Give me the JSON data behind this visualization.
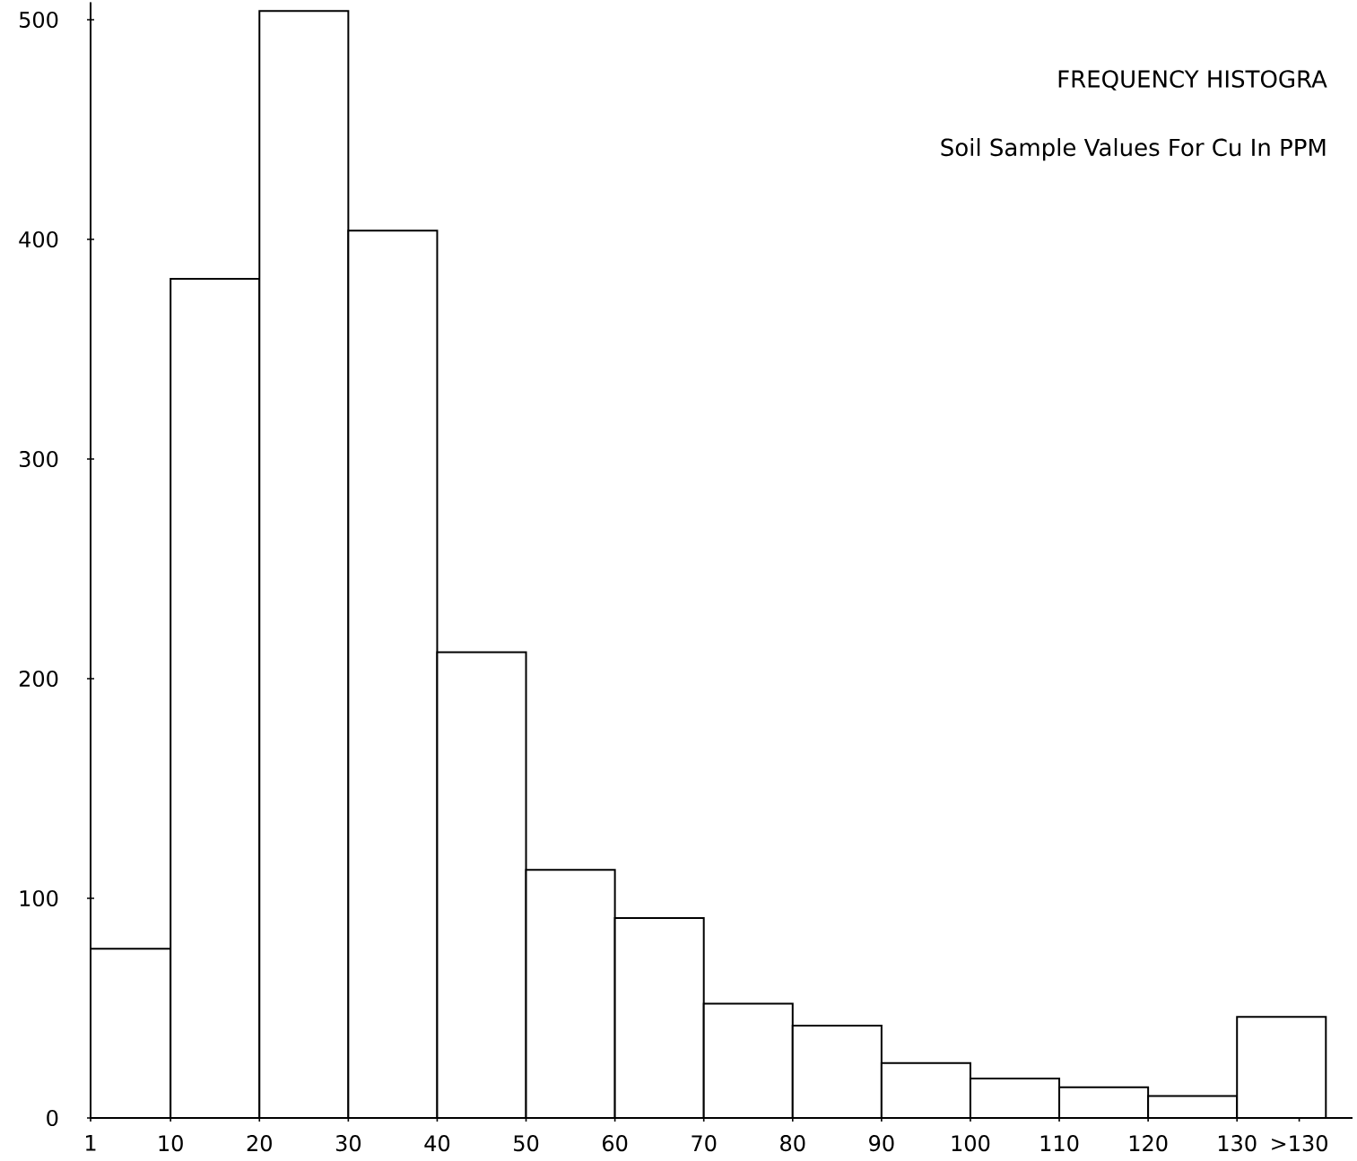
{
  "chart_data": {
    "type": "histogram",
    "title": "FREQUENCY HISTOGRA",
    "subtitle": "Soil Sample Values For Cu In PPM",
    "bins": [
      1,
      10,
      20,
      30,
      40,
      50,
      60,
      70,
      80,
      90,
      100,
      110,
      120,
      130,
      140
    ],
    "values": [
      77,
      382,
      504,
      404,
      212,
      113,
      91,
      52,
      42,
      25,
      18,
      14,
      10,
      46
    ],
    "color": "#ffffff",
    "xlim": [
      1,
      143
    ],
    "ylim": [
      0,
      508
    ],
    "xticks": [
      1,
      10,
      20,
      30,
      40,
      50,
      60,
      70,
      80,
      90,
      100,
      110,
      120,
      130,
      {
        "value": 137,
        "label": ">130"
      }
    ],
    "yticks": [
      0,
      100,
      200,
      300,
      400,
      500
    ],
    "grid": false
  }
}
